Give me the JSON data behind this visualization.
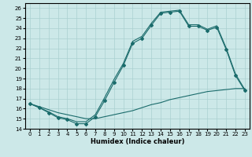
{
  "xlabel": "Humidex (Indice chaleur)",
  "bg_color": "#cce8e8",
  "grid_color": "#aad0d0",
  "line_color": "#1a6b6b",
  "xlim": [
    -0.5,
    23.5
  ],
  "ylim": [
    14,
    26.5
  ],
  "yticks": [
    14,
    15,
    16,
    17,
    18,
    19,
    20,
    21,
    22,
    23,
    24,
    25,
    26
  ],
  "xticks": [
    0,
    1,
    2,
    3,
    4,
    5,
    6,
    7,
    8,
    9,
    10,
    11,
    12,
    13,
    14,
    15,
    16,
    17,
    18,
    19,
    20,
    21,
    22,
    23
  ],
  "line1_x": [
    0,
    1,
    2,
    3,
    4,
    5,
    6,
    7,
    8,
    9,
    10,
    11,
    12,
    13,
    14,
    15,
    16,
    17,
    18,
    19,
    20,
    21,
    22,
    23
  ],
  "line1_y": [
    16.5,
    16.1,
    15.6,
    15.1,
    14.9,
    14.5,
    14.5,
    15.2,
    16.8,
    18.6,
    20.3,
    22.5,
    23.0,
    24.3,
    25.5,
    25.6,
    25.7,
    24.2,
    24.2,
    23.8,
    24.1,
    21.9,
    19.3,
    17.8
  ],
  "line2_x": [
    0,
    1,
    2,
    3,
    4,
    5,
    6,
    7,
    8,
    9,
    10,
    11,
    12,
    13,
    14,
    15,
    16,
    17,
    18,
    19,
    20,
    21,
    22,
    23
  ],
  "line2_y": [
    16.5,
    16.1,
    15.7,
    15.2,
    15.0,
    14.7,
    14.7,
    15.4,
    17.1,
    18.9,
    20.5,
    22.7,
    23.2,
    24.5,
    25.6,
    25.7,
    25.8,
    24.35,
    24.35,
    23.9,
    24.25,
    22.05,
    19.45,
    17.9
  ],
  "line3_x": [
    0,
    1,
    2,
    3,
    4,
    5,
    6,
    7,
    8,
    9,
    10,
    11,
    12,
    13,
    14,
    15,
    16,
    17,
    18,
    19,
    20,
    21,
    22,
    23
  ],
  "line3_y": [
    16.5,
    16.2,
    15.9,
    15.6,
    15.4,
    15.2,
    15.0,
    15.0,
    15.2,
    15.4,
    15.6,
    15.8,
    16.1,
    16.4,
    16.6,
    16.9,
    17.1,
    17.3,
    17.5,
    17.7,
    17.8,
    17.9,
    18.0,
    18.0
  ]
}
